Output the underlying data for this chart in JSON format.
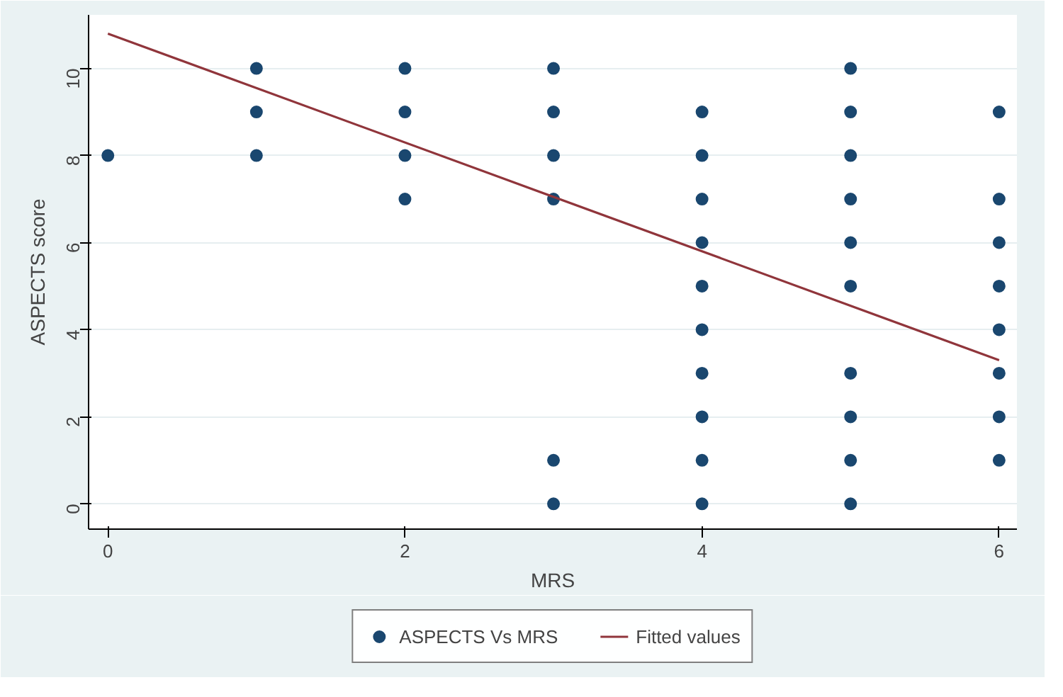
{
  "chart_data": {
    "type": "scatter",
    "xlabel": "MRS",
    "ylabel": "ASPECTS score",
    "xlim": [
      -0.13,
      6.12
    ],
    "ylim": [
      -0.58,
      11.23
    ],
    "xticks": [
      0,
      2,
      4,
      6
    ],
    "yticks": [
      0,
      2,
      4,
      6,
      8,
      10
    ],
    "grid": "y",
    "legend": "bottom",
    "marker": "circle",
    "series": [
      {
        "name": "ASPECTS Vs MRS",
        "color": "#1a476f",
        "x": [
          0,
          1,
          1,
          1,
          2,
          2,
          2,
          2,
          3,
          3,
          3,
          3,
          3,
          3,
          4,
          4,
          4,
          4,
          4,
          4,
          4,
          4,
          4,
          4,
          5,
          5,
          5,
          5,
          5,
          5,
          5,
          5,
          5,
          5,
          6,
          6,
          6,
          6,
          6,
          6,
          6,
          6
        ],
        "values": [
          8,
          10,
          9,
          8,
          10,
          9,
          8,
          7,
          10,
          9,
          8,
          7,
          1,
          0,
          9,
          8,
          7,
          6,
          5,
          4,
          3,
          2,
          1,
          0,
          10,
          9,
          8,
          7,
          6,
          5,
          3,
          2,
          1,
          0,
          9,
          7,
          6,
          5,
          4,
          3,
          2,
          1
        ]
      },
      {
        "name": "Fitted values",
        "color": "#90353b",
        "type": "line",
        "marker": "none",
        "x": [
          0,
          6
        ],
        "values": [
          10.8,
          3.3
        ]
      }
    ]
  }
}
